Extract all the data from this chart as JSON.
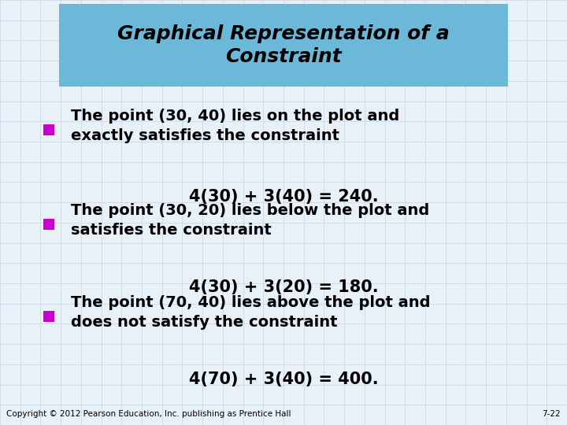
{
  "title_line1": "Graphical Representation of a",
  "title_line2": "Constraint",
  "title_bg_color": "#6CB8D8",
  "bg_color": "#E8F0F8",
  "grid_color": "#C5D5E5",
  "bullet_color": "#CC00CC",
  "text_color": "#000000",
  "bullet1_line1": "The point (30, 40) lies on the plot and",
  "bullet1_line2": "exactly satisfies the constraint",
  "bullet1_eq": "4(30) + 3(40) = 240.",
  "bullet2_line1": "The point (30, 20) lies below the plot and",
  "bullet2_line2": "satisfies the constraint",
  "bullet2_eq": "4(30) + 3(20) = 180.",
  "bullet3_line1": "The point (70, 40) lies above the plot and",
  "bullet3_line2": "does not satisfy the constraint",
  "bullet3_eq": "4(70) + 3(40) = 400.",
  "footer": "Copyright © 2012 Pearson Education, Inc. publishing as Prentice Hall",
  "footer_right": "7-22",
  "title_fontsize": 18,
  "bullet_fontsize": 14,
  "eq_fontsize": 15,
  "footer_fontsize": 7.5
}
